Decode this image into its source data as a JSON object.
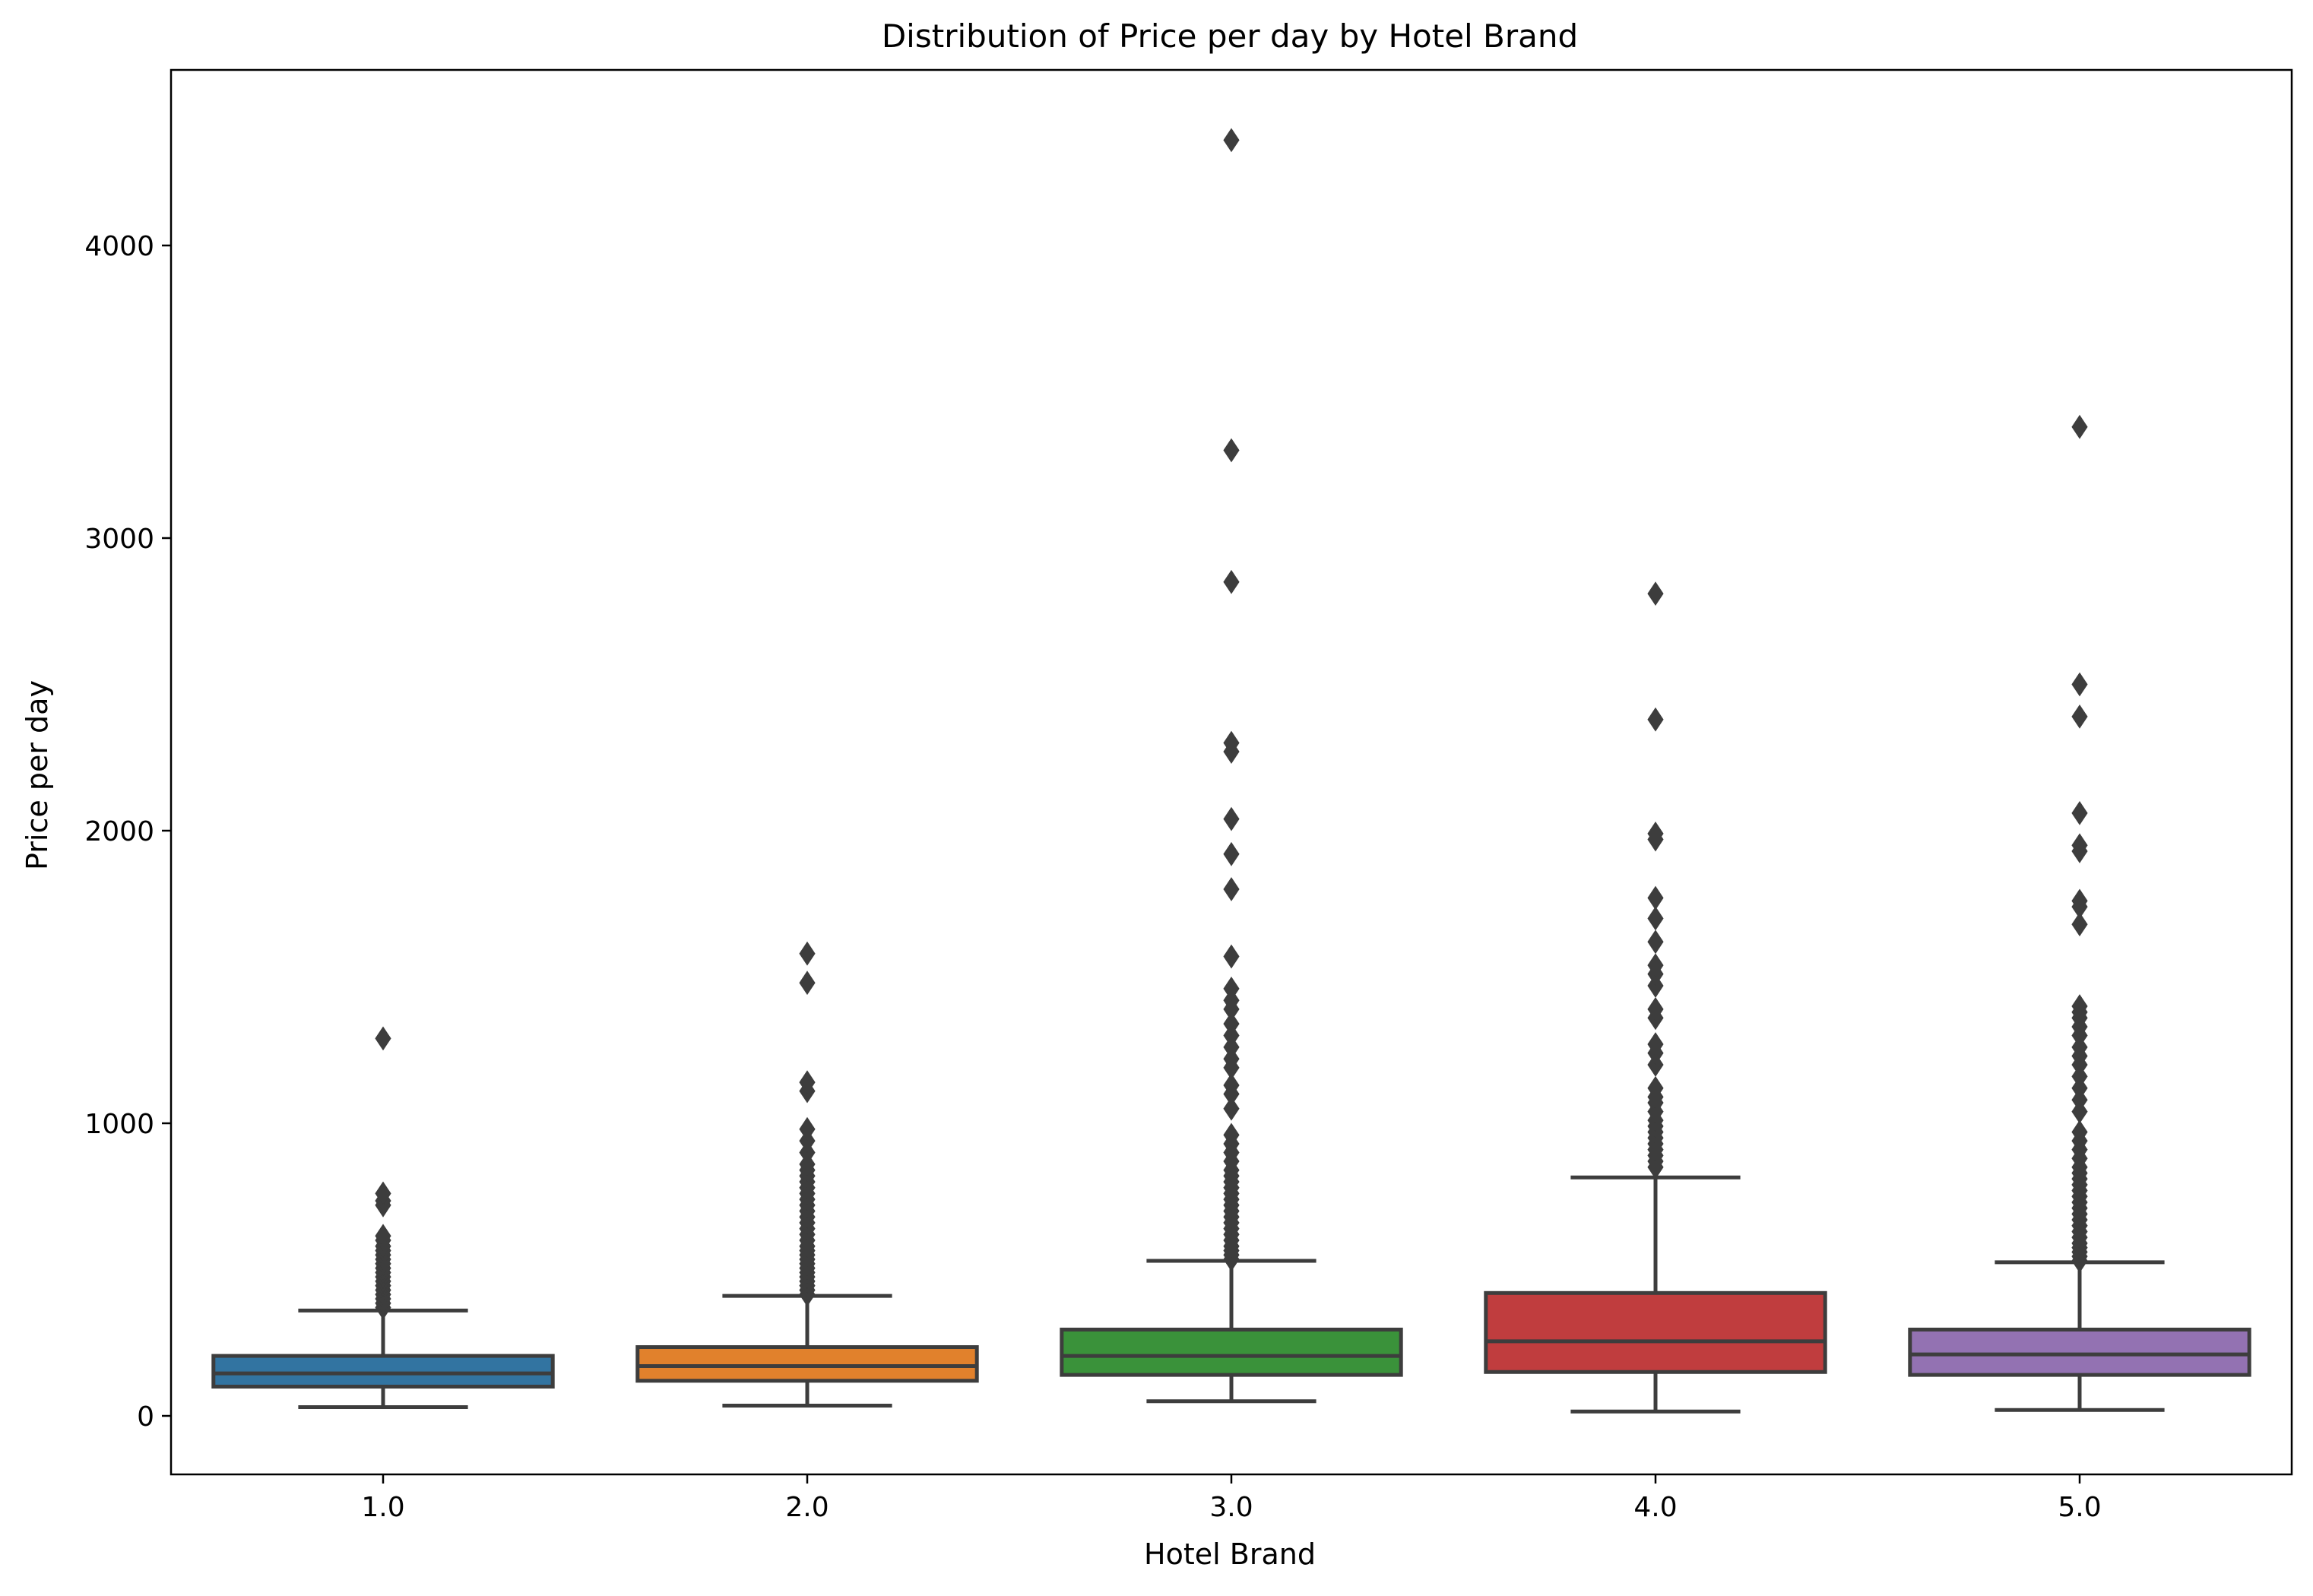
{
  "chart_data": {
    "type": "box",
    "title": "Distribution of Price per day by Hotel Brand",
    "xlabel": "Hotel Brand",
    "ylabel": "Price per day",
    "ylim": [
      -200,
      4600
    ],
    "yticks": [
      0,
      1000,
      2000,
      3000,
      4000
    ],
    "grid": false,
    "categories": [
      "1.0",
      "2.0",
      "3.0",
      "4.0",
      "5.0"
    ],
    "boxes": [
      {
        "category": "1.0",
        "color": "#3274a1",
        "whisker_low": 30,
        "q1": 100,
        "median": 145,
        "q3": 205,
        "whisker_high": 360,
        "outliers": [
          370,
          385,
          400,
          415,
          430,
          445,
          460,
          475,
          490,
          505,
          520,
          535,
          550,
          565,
          580,
          600,
          615,
          720,
          735,
          760,
          1290
        ]
      },
      {
        "category": "2.0",
        "color": "#e1812c",
        "whisker_low": 35,
        "q1": 120,
        "median": 170,
        "q3": 235,
        "whisker_high": 410,
        "outliers": [
          415,
          430,
          445,
          460,
          475,
          490,
          505,
          520,
          535,
          550,
          565,
          580,
          600,
          620,
          640,
          660,
          680,
          700,
          720,
          740,
          760,
          780,
          800,
          820,
          840,
          860,
          900,
          940,
          980,
          1110,
          1140,
          1480,
          1580
        ]
      },
      {
        "category": "3.0",
        "color": "#3a923a",
        "whisker_low": 50,
        "q1": 140,
        "median": 205,
        "q3": 295,
        "whisker_high": 530,
        "outliers": [
          535,
          550,
          565,
          580,
          600,
          620,
          640,
          660,
          680,
          700,
          720,
          740,
          760,
          780,
          800,
          820,
          840,
          870,
          900,
          930,
          960,
          1050,
          1100,
          1130,
          1190,
          1220,
          1260,
          1300,
          1340,
          1390,
          1420,
          1460,
          1570,
          1800,
          1920,
          2040,
          2270,
          2300,
          2850,
          3300,
          4360
        ]
      },
      {
        "category": "4.0",
        "color": "#c03d3e",
        "whisker_low": 15,
        "q1": 150,
        "median": 255,
        "q3": 420,
        "whisker_high": 815,
        "outliers": [
          850,
          870,
          890,
          910,
          930,
          950,
          970,
          990,
          1010,
          1040,
          1070,
          1090,
          1120,
          1200,
          1240,
          1270,
          1360,
          1390,
          1470,
          1510,
          1540,
          1620,
          1700,
          1770,
          1970,
          1990,
          2380,
          2810
        ]
      },
      {
        "category": "5.0",
        "color": "#9372b2",
        "whisker_low": 20,
        "q1": 140,
        "median": 210,
        "q3": 295,
        "whisker_high": 525,
        "outliers": [
          530,
          545,
          560,
          575,
          590,
          610,
          630,
          650,
          670,
          690,
          710,
          730,
          750,
          770,
          790,
          810,
          830,
          850,
          880,
          910,
          940,
          970,
          1040,
          1080,
          1120,
          1160,
          1200,
          1230,
          1260,
          1300,
          1330,
          1360,
          1380,
          1400,
          1680,
          1740,
          1760,
          1930,
          1950,
          2060,
          2390,
          2500,
          3380
        ]
      }
    ]
  }
}
